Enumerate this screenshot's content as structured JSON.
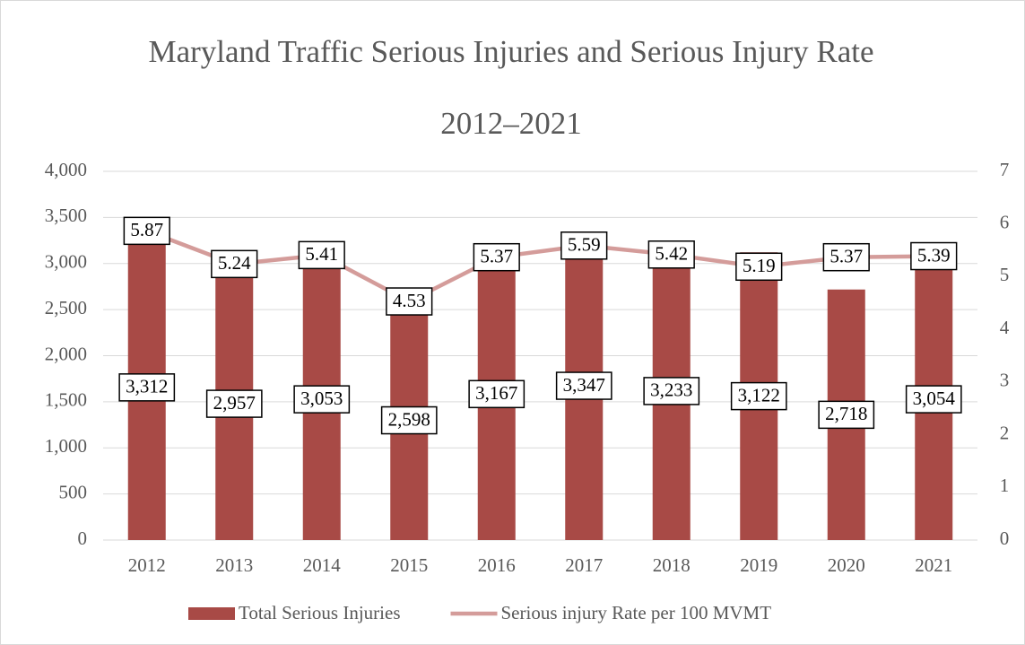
{
  "chart_data": {
    "type": "bar",
    "title": "Maryland Traffic Serious Injuries and Serious Injury Rate",
    "subtitle": "2012–2021",
    "categories": [
      "2012",
      "2013",
      "2014",
      "2015",
      "2016",
      "2017",
      "2018",
      "2019",
      "2020",
      "2021"
    ],
    "series": [
      {
        "name": "Total Serious Injuries",
        "type": "bar",
        "color": "#a84a46",
        "values": [
          3312,
          2957,
          3053,
          2598,
          3167,
          3347,
          3233,
          3122,
          2718,
          3054
        ],
        "value_labels": [
          "3,312",
          "2,957",
          "3,053",
          "2,598",
          "3,167",
          "3,347",
          "3,233",
          "3,122",
          "2,718",
          "3,054"
        ]
      },
      {
        "name": "Serious injury Rate per 100 MVMT",
        "type": "line",
        "axis": "y2",
        "color": "#d49c9a",
        "values": [
          5.87,
          5.24,
          5.41,
          4.53,
          5.37,
          5.59,
          5.42,
          5.19,
          5.37,
          5.39
        ]
      }
    ],
    "ylim": [
      0,
      4000
    ],
    "yticks": [
      0,
      500,
      {
        "value": 1000,
        "label": "1,000"
      },
      {
        "value": 1500,
        "label": "1,500"
      },
      {
        "value": 2000,
        "label": "2,000"
      },
      {
        "value": 2500,
        "label": "2,500"
      },
      {
        "value": 3000,
        "label": "3,000"
      },
      {
        "value": 3500,
        "label": "3,500"
      },
      {
        "value": 4000,
        "label": "4,000"
      }
    ],
    "y2lim": [
      0,
      7
    ],
    "y2ticks": [
      0,
      1,
      2,
      3,
      4,
      5,
      6,
      7
    ],
    "grid": true,
    "legend": "bottom"
  }
}
